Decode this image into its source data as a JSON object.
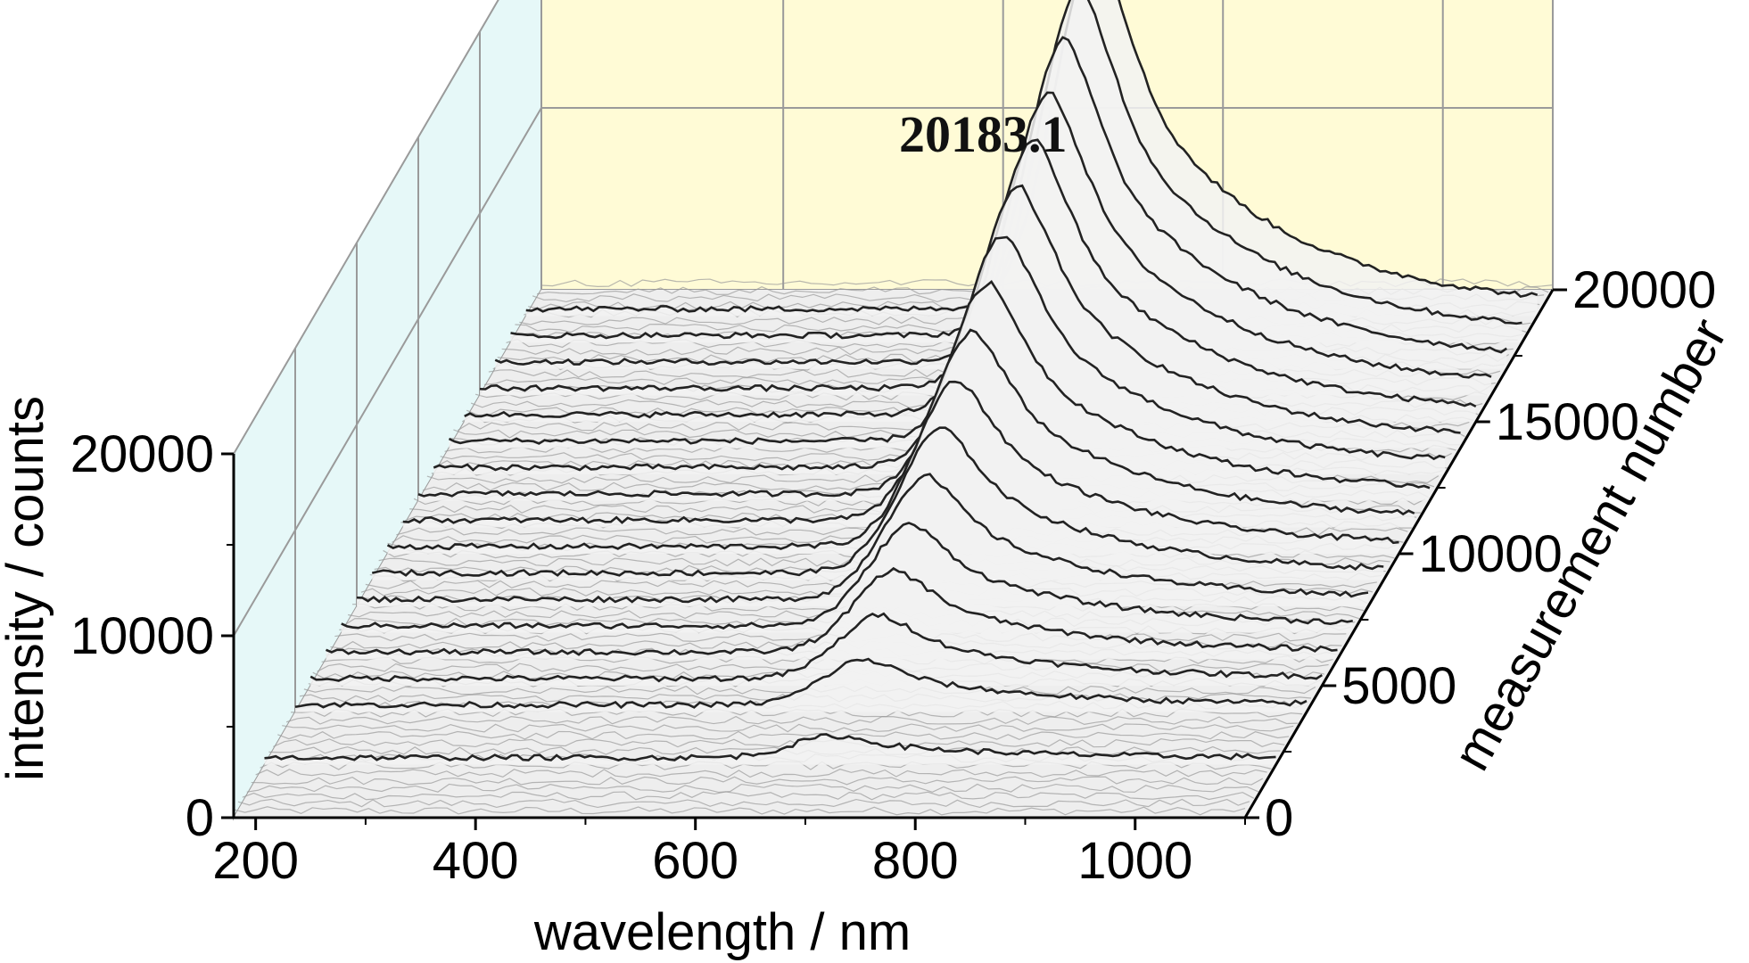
{
  "chart_data": {
    "type": "area",
    "style": "3d-waterfall",
    "peak_label": "20183.1",
    "axes": {
      "x": {
        "label": "wavelength / nm",
        "range": [
          180,
          1100
        ],
        "ticks": [
          200,
          400,
          600,
          800,
          1000
        ],
        "tick_labels": [
          "200",
          "400",
          "600",
          "800",
          "1000"
        ]
      },
      "y": {
        "label": "measurement number",
        "range": [
          0,
          20000
        ],
        "ticks": [
          0,
          5000,
          10000,
          15000,
          20000
        ],
        "tick_labels": [
          "0",
          "5000",
          "10000",
          "15000",
          "20000"
        ]
      },
      "z": {
        "label": "intensity / counts",
        "range": [
          0,
          20000
        ],
        "ticks": [
          0,
          10000,
          20000
        ],
        "tick_labels": [
          "0",
          "10000",
          "20000"
        ]
      }
    },
    "spectrum_peak_wavelength": 700,
    "peak_intensity_by_measurement": {
      "measurement": [
        2000,
        4000,
        5000,
        6000,
        7000,
        8000,
        9000,
        10000,
        11000,
        12000,
        13000,
        14000,
        15000,
        16000,
        17000,
        18000,
        19000
      ],
      "intensity": [
        1200,
        2500,
        3500,
        4500,
        5600,
        6800,
        8000,
        9200,
        10400,
        11600,
        12800,
        14000,
        15200,
        16400,
        17800,
        19200,
        20183
      ]
    },
    "colors": {
      "back_wall": "#fffbd6",
      "side_wall": "#e6f8f8",
      "floor": "#eeeeee",
      "grid": "#9a9a9a",
      "trace": "#222222"
    },
    "grid": true
  }
}
